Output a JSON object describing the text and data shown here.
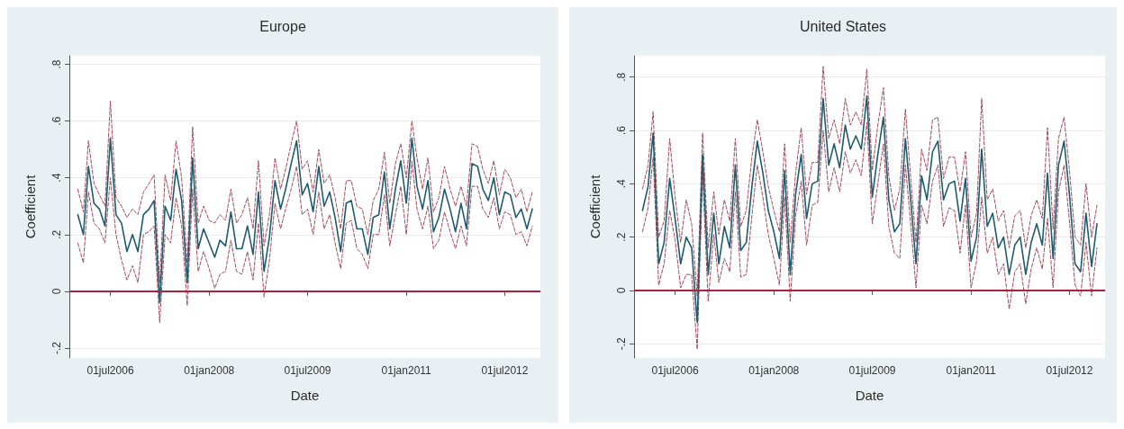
{
  "chart_data": [
    {
      "type": "line",
      "title": "Europe",
      "xlabel": "Date",
      "ylabel": "Coefficient",
      "x": [
        "2006-01",
        "2006-02",
        "2006-03",
        "2006-04",
        "2006-05",
        "2006-06",
        "2006-07",
        "2006-08",
        "2006-09",
        "2006-10",
        "2006-11",
        "2006-12",
        "2007-01",
        "2007-02",
        "2007-03",
        "2007-04",
        "2007-05",
        "2007-06",
        "2007-07",
        "2007-08",
        "2007-09",
        "2007-10",
        "2007-11",
        "2007-12",
        "2008-01",
        "2008-02",
        "2008-03",
        "2008-04",
        "2008-05",
        "2008-06",
        "2008-07",
        "2008-08",
        "2008-09",
        "2008-10",
        "2008-11",
        "2008-12",
        "2009-01",
        "2009-02",
        "2009-03",
        "2009-04",
        "2009-05",
        "2009-06",
        "2009-07",
        "2009-08",
        "2009-09",
        "2009-10",
        "2009-11",
        "2009-12",
        "2010-01",
        "2010-02",
        "2010-03",
        "2010-04",
        "2010-05",
        "2010-06",
        "2010-07",
        "2010-08",
        "2010-09",
        "2010-10",
        "2010-11",
        "2010-12",
        "2011-01",
        "2011-02",
        "2011-03",
        "2011-04",
        "2011-05",
        "2011-06",
        "2011-07",
        "2011-08",
        "2011-09",
        "2011-10",
        "2011-11",
        "2011-12",
        "2012-01",
        "2012-02",
        "2012-03",
        "2012-04",
        "2012-05",
        "2012-06",
        "2012-07",
        "2012-08",
        "2012-09",
        "2012-10",
        "2012-11",
        "2012-12"
      ],
      "series": [
        {
          "color": "#1d5b6e",
          "line_style": "solid",
          "values": [
            0.27,
            0.2,
            0.44,
            0.31,
            0.29,
            0.23,
            0.54,
            0.27,
            0.24,
            0.14,
            0.2,
            0.14,
            0.27,
            0.29,
            0.32,
            -0.04,
            0.3,
            0.25,
            0.43,
            0.32,
            0.03,
            0.47,
            0.15,
            0.22,
            0.17,
            0.12,
            0.18,
            0.16,
            0.28,
            0.15,
            0.15,
            0.23,
            0.13,
            0.35,
            0.07,
            0.19,
            0.39,
            0.29,
            0.36,
            0.45,
            0.53,
            0.34,
            0.38,
            0.28,
            0.44,
            0.3,
            0.35,
            0.26,
            0.14,
            0.31,
            0.32,
            0.22,
            0.22,
            0.13,
            0.26,
            0.27,
            0.42,
            0.22,
            0.36,
            0.46,
            0.31,
            0.54,
            0.37,
            0.29,
            0.39,
            0.21,
            0.26,
            0.36,
            0.29,
            0.21,
            0.31,
            0.22,
            0.45,
            0.44,
            0.36,
            0.32,
            0.4,
            0.27,
            0.35,
            0.34,
            0.26,
            0.29,
            0.22,
            0.29
          ]
        },
        {
          "color": "#a34a5a",
          "line_style": "dashed",
          "values": [
            0.36,
            0.28,
            0.53,
            0.38,
            0.34,
            0.3,
            0.67,
            0.33,
            0.3,
            0.26,
            0.29,
            0.27,
            0.35,
            0.38,
            0.41,
            0.03,
            0.41,
            0.32,
            0.53,
            0.4,
            0.1,
            0.58,
            0.24,
            0.3,
            0.25,
            0.24,
            0.27,
            0.25,
            0.36,
            0.24,
            0.27,
            0.33,
            0.22,
            0.46,
            0.16,
            0.27,
            0.47,
            0.36,
            0.43,
            0.52,
            0.6,
            0.43,
            0.46,
            0.35,
            0.5,
            0.38,
            0.41,
            0.33,
            0.22,
            0.39,
            0.39,
            0.3,
            0.29,
            0.2,
            0.32,
            0.36,
            0.49,
            0.31,
            0.45,
            0.52,
            0.4,
            0.6,
            0.47,
            0.36,
            0.47,
            0.28,
            0.33,
            0.44,
            0.36,
            0.3,
            0.37,
            0.3,
            0.52,
            0.51,
            0.43,
            0.38,
            0.46,
            0.34,
            0.43,
            0.4,
            0.33,
            0.36,
            0.28,
            0.35
          ]
        },
        {
          "color": "#a34a5a",
          "line_style": "dashed",
          "values": [
            0.17,
            0.1,
            0.35,
            0.24,
            0.22,
            0.17,
            0.4,
            0.2,
            0.11,
            0.04,
            0.09,
            0.03,
            0.2,
            0.21,
            0.23,
            -0.11,
            0.2,
            0.17,
            0.33,
            0.23,
            -0.05,
            0.36,
            0.07,
            0.14,
            0.08,
            0.01,
            0.06,
            0.07,
            0.18,
            0.07,
            0.06,
            0.14,
            0.04,
            0.24,
            -0.02,
            0.11,
            0.31,
            0.22,
            0.29,
            0.36,
            0.44,
            0.27,
            0.29,
            0.2,
            0.35,
            0.22,
            0.27,
            0.17,
            0.08,
            0.24,
            0.25,
            0.15,
            0.13,
            0.08,
            0.2,
            0.2,
            0.34,
            0.16,
            0.27,
            0.37,
            0.2,
            0.46,
            0.29,
            0.22,
            0.3,
            0.15,
            0.18,
            0.28,
            0.21,
            0.15,
            0.23,
            0.16,
            0.37,
            0.37,
            0.29,
            0.26,
            0.33,
            0.22,
            0.28,
            0.27,
            0.2,
            0.21,
            0.16,
            0.23
          ]
        }
      ],
      "xlim": [
        "2005-11-15",
        "2013-01-15"
      ],
      "xticks": [
        {
          "value": "2006-07-01",
          "label": "01jul2006"
        },
        {
          "value": "2008-01-01",
          "label": "01jan2008"
        },
        {
          "value": "2009-07-01",
          "label": "01jul2009"
        },
        {
          "value": "2011-01-01",
          "label": "01jan2011"
        },
        {
          "value": "2012-07-01",
          "label": "01jul2012"
        }
      ],
      "ylim": [
        -0.235,
        0.83
      ],
      "yticks": [
        {
          "value": -0.2,
          "label": "-.2"
        },
        0,
        {
          "value": 0.2,
          "label": ".2"
        },
        {
          "value": 0.4,
          "label": ".4"
        },
        {
          "value": 0.6,
          "label": ".6"
        },
        {
          "value": 0.8,
          "label": ".8"
        }
      ],
      "ref_lines": [
        {
          "axis": "y",
          "value": 0,
          "color": "#a8243f"
        }
      ],
      "grid": "y",
      "marker": "none"
    },
    {
      "type": "line",
      "title": "United States",
      "xlabel": "Date",
      "ylabel": "Coefficient",
      "x": [
        "2006-01",
        "2006-02",
        "2006-03",
        "2006-04",
        "2006-05",
        "2006-06",
        "2006-07",
        "2006-08",
        "2006-09",
        "2006-10",
        "2006-11",
        "2006-12",
        "2007-01",
        "2007-02",
        "2007-03",
        "2007-04",
        "2007-05",
        "2007-06",
        "2007-07",
        "2007-08",
        "2007-09",
        "2007-10",
        "2007-11",
        "2007-12",
        "2008-01",
        "2008-02",
        "2008-03",
        "2008-04",
        "2008-05",
        "2008-06",
        "2008-07",
        "2008-08",
        "2008-09",
        "2008-10",
        "2008-11",
        "2008-12",
        "2009-01",
        "2009-02",
        "2009-03",
        "2009-04",
        "2009-05",
        "2009-06",
        "2009-07",
        "2009-08",
        "2009-09",
        "2009-10",
        "2009-11",
        "2009-12",
        "2010-01",
        "2010-02",
        "2010-03",
        "2010-04",
        "2010-05",
        "2010-06",
        "2010-07",
        "2010-08",
        "2010-09",
        "2010-10",
        "2010-11",
        "2010-12",
        "2011-01",
        "2011-02",
        "2011-03",
        "2011-04",
        "2011-05",
        "2011-06",
        "2011-07",
        "2011-08",
        "2011-09",
        "2011-10",
        "2011-11",
        "2011-12",
        "2012-01",
        "2012-02",
        "2012-03",
        "2012-04",
        "2012-05",
        "2012-06",
        "2012-07",
        "2012-08",
        "2012-09",
        "2012-10",
        "2012-11",
        "2012-12"
      ],
      "series": [
        {
          "color": "#1d5b6e",
          "line_style": "solid",
          "values": [
            0.3,
            0.39,
            0.59,
            0.1,
            0.18,
            0.42,
            0.27,
            0.1,
            0.2,
            0.16,
            -0.12,
            0.51,
            0.06,
            0.29,
            0.1,
            0.24,
            0.16,
            0.47,
            0.15,
            0.18,
            0.39,
            0.56,
            0.44,
            0.3,
            0.22,
            0.12,
            0.45,
            0.06,
            0.36,
            0.51,
            0.27,
            0.4,
            0.41,
            0.72,
            0.47,
            0.55,
            0.46,
            0.62,
            0.53,
            0.58,
            0.53,
            0.73,
            0.35,
            0.51,
            0.65,
            0.34,
            0.22,
            0.25,
            0.57,
            0.33,
            0.1,
            0.43,
            0.34,
            0.52,
            0.56,
            0.34,
            0.4,
            0.41,
            0.26,
            0.42,
            0.11,
            0.2,
            0.53,
            0.24,
            0.29,
            0.16,
            0.2,
            0.06,
            0.17,
            0.2,
            0.06,
            0.18,
            0.25,
            0.17,
            0.44,
            0.12,
            0.47,
            0.56,
            0.36,
            0.1,
            0.07,
            0.29,
            0.09,
            0.25
          ]
        },
        {
          "color": "#a34a5a",
          "line_style": "dashed",
          "values": [
            0.38,
            0.47,
            0.67,
            0.2,
            0.26,
            0.57,
            0.35,
            0.18,
            0.34,
            0.25,
            -0.02,
            0.59,
            0.16,
            0.37,
            0.21,
            0.34,
            0.26,
            0.57,
            0.24,
            0.3,
            0.5,
            0.64,
            0.52,
            0.39,
            0.3,
            0.22,
            0.55,
            0.18,
            0.44,
            0.61,
            0.36,
            0.48,
            0.48,
            0.84,
            0.57,
            0.64,
            0.55,
            0.72,
            0.62,
            0.67,
            0.62,
            0.83,
            0.45,
            0.62,
            0.76,
            0.43,
            0.3,
            0.38,
            0.68,
            0.41,
            0.18,
            0.53,
            0.45,
            0.64,
            0.65,
            0.42,
            0.5,
            0.5,
            0.37,
            0.52,
            0.2,
            0.29,
            0.72,
            0.34,
            0.38,
            0.26,
            0.3,
            0.16,
            0.28,
            0.3,
            0.16,
            0.28,
            0.34,
            0.27,
            0.61,
            0.23,
            0.57,
            0.65,
            0.45,
            0.2,
            0.17,
            0.4,
            0.2,
            0.32
          ]
        },
        {
          "color": "#a34a5a",
          "line_style": "dashed",
          "values": [
            0.22,
            0.31,
            0.5,
            0.02,
            0.1,
            0.3,
            0.19,
            0.01,
            0.06,
            0.06,
            -0.22,
            0.43,
            -0.04,
            0.21,
            0.03,
            0.12,
            0.07,
            0.37,
            0.05,
            0.06,
            0.28,
            0.47,
            0.35,
            0.21,
            0.12,
            0.02,
            0.35,
            -0.04,
            0.28,
            0.41,
            0.17,
            0.32,
            0.33,
            0.6,
            0.37,
            0.46,
            0.37,
            0.52,
            0.44,
            0.49,
            0.43,
            0.63,
            0.25,
            0.4,
            0.55,
            0.24,
            0.14,
            0.12,
            0.47,
            0.24,
            0.01,
            0.32,
            0.25,
            0.41,
            0.47,
            0.24,
            0.31,
            0.3,
            0.14,
            0.32,
            0.01,
            0.11,
            0.35,
            0.14,
            0.2,
            0.06,
            0.1,
            -0.07,
            0.07,
            0.1,
            -0.05,
            0.08,
            0.16,
            0.08,
            0.27,
            0.01,
            0.37,
            0.47,
            0.26,
            0.02,
            -0.02,
            0.18,
            -0.02,
            0.16
          ]
        }
      ],
      "xlim": [
        "2005-11-15",
        "2013-01-15"
      ],
      "xticks": [
        {
          "value": "2006-07-01",
          "label": "01jul2006"
        },
        {
          "value": "2008-01-01",
          "label": "01jan2008"
        },
        {
          "value": "2009-07-01",
          "label": "01jul2009"
        },
        {
          "value": "2011-01-01",
          "label": "01jan2011"
        },
        {
          "value": "2012-07-01",
          "label": "01jul2012"
        }
      ],
      "ylim": [
        -0.253,
        0.88
      ],
      "yticks": [
        {
          "value": -0.2,
          "label": "-.2"
        },
        0,
        {
          "value": 0.2,
          "label": ".2"
        },
        {
          "value": 0.4,
          "label": ".4"
        },
        {
          "value": 0.6,
          "label": ".6"
        },
        {
          "value": 0.8,
          "label": ".8"
        }
      ],
      "ref_lines": [
        {
          "axis": "y",
          "value": 0,
          "color": "#a8243f"
        }
      ],
      "grid": "y",
      "marker": "none"
    }
  ]
}
